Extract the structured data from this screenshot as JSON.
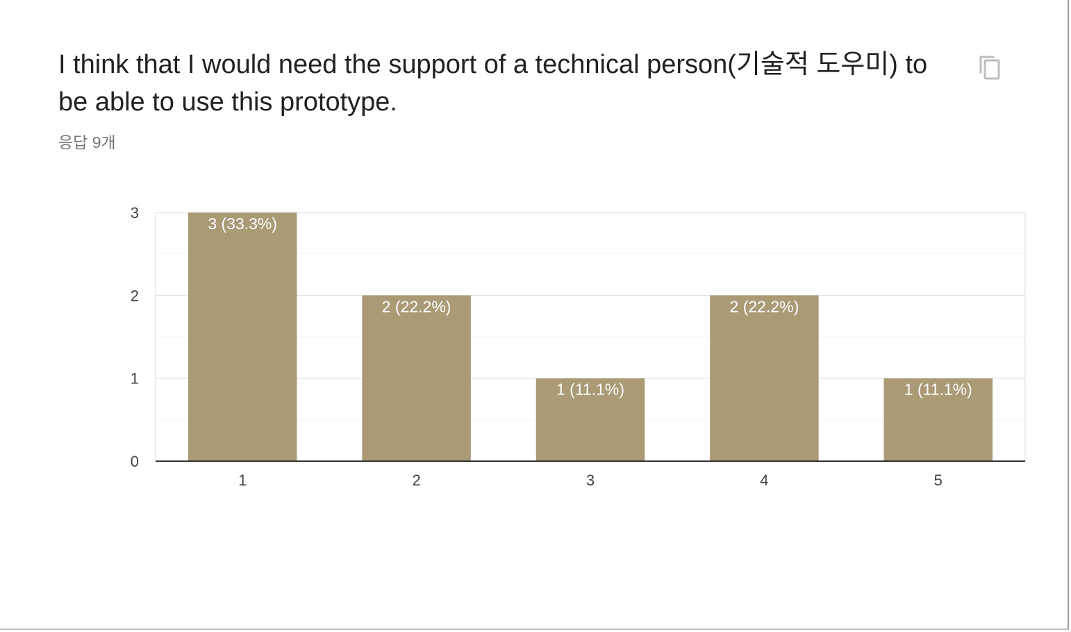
{
  "question": {
    "title": "I think that I would need the support of a technical person(기술적 도우미) to be able to use this prototype.",
    "response_count": "응답 9개",
    "copy_icon": "copy-icon"
  },
  "chart_data": {
    "type": "bar",
    "categories": [
      "1",
      "2",
      "3",
      "4",
      "5"
    ],
    "values": [
      3,
      2,
      1,
      2,
      1
    ],
    "data_labels": [
      "3 (33.3%)",
      "2 (22.2%)",
      "1 (11.1%)",
      "2 (22.2%)",
      "1 (11.1%)"
    ],
    "y_ticks": [
      "0",
      "1",
      "2",
      "3"
    ],
    "ylim": [
      0,
      3
    ],
    "grid": true,
    "bar_color": "#aa9a75",
    "legend": "none"
  }
}
